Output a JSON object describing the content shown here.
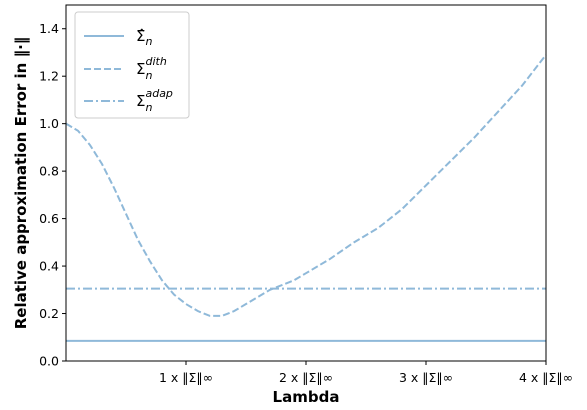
{
  "chart_data": {
    "type": "line",
    "title": "",
    "xlabel": "Lambda",
    "ylabel": "Relative approximation Error in ‖·‖",
    "xlim": [
      0,
      4
    ],
    "ylim": [
      0.0,
      1.5
    ],
    "y_ticks": [
      0.0,
      0.2,
      0.4,
      0.6,
      0.8,
      1.0,
      1.2,
      1.4
    ],
    "y_tick_labels": [
      "0.0",
      "0.2",
      "0.4",
      "0.6",
      "0.8",
      "1.0",
      "1.2",
      "1.4"
    ],
    "x_ticks": [
      1,
      2,
      3,
      4
    ],
    "x_tick_labels": [
      "1 x ‖Σ‖∞",
      "2 x ‖Σ‖∞",
      "3 x ‖Σ‖∞",
      "4 x ‖Σ‖∞"
    ],
    "grid": false,
    "legend_position": "top-left",
    "color": "#8fb9d9",
    "series": [
      {
        "name": "Σ̂n",
        "style": "solid",
        "x": [
          0,
          4
        ],
        "y": [
          0.085,
          0.085
        ]
      },
      {
        "name": "Σn^dith",
        "style": "dashed",
        "x": [
          0.0,
          0.1,
          0.2,
          0.3,
          0.4,
          0.5,
          0.6,
          0.7,
          0.8,
          0.9,
          1.0,
          1.1,
          1.2,
          1.3,
          1.4,
          1.5,
          1.6,
          1.7,
          1.8,
          1.9,
          2.0,
          2.2,
          2.4,
          2.6,
          2.8,
          3.0,
          3.2,
          3.4,
          3.6,
          3.8,
          4.0
        ],
        "y": [
          1.0,
          0.97,
          0.91,
          0.83,
          0.73,
          0.62,
          0.51,
          0.42,
          0.34,
          0.28,
          0.24,
          0.21,
          0.19,
          0.19,
          0.21,
          0.24,
          0.27,
          0.3,
          0.32,
          0.34,
          0.37,
          0.43,
          0.5,
          0.56,
          0.64,
          0.74,
          0.84,
          0.94,
          1.05,
          1.16,
          1.29
        ]
      },
      {
        "name": "Σn^adap",
        "style": "dashdot",
        "x": [
          0,
          4
        ],
        "y": [
          0.305,
          0.305
        ]
      }
    ]
  }
}
